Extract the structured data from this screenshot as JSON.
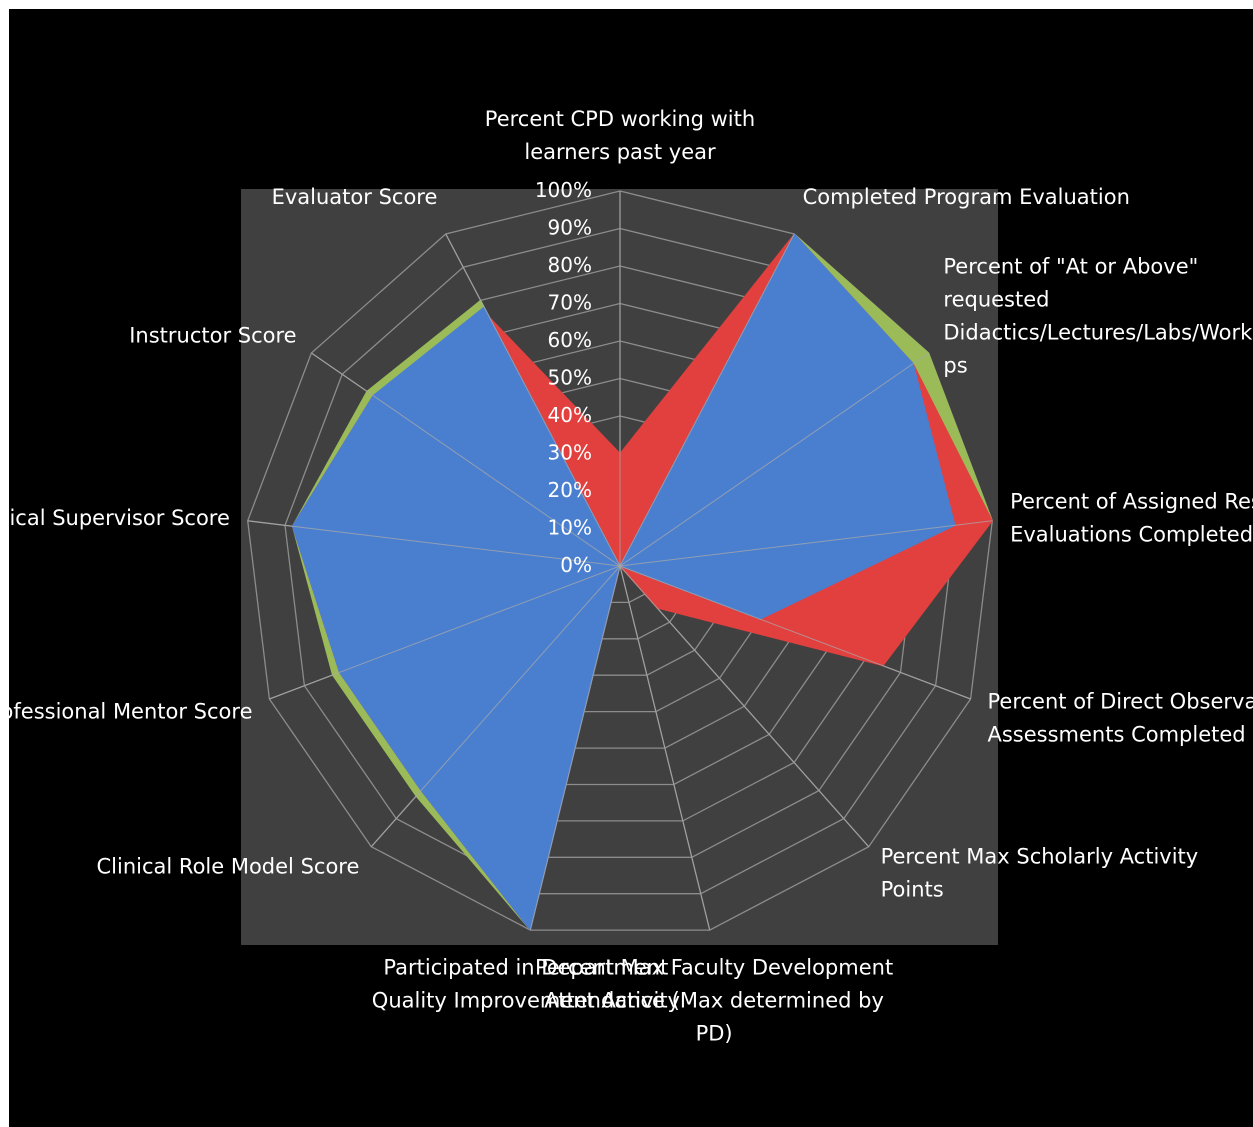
{
  "chart_data": {
    "type": "radar",
    "title": "",
    "axes": [
      [
        "Percent CPD working with",
        "learners past year"
      ],
      [
        "Completed Program Evaluation"
      ],
      [
        "Percent of \"At or Above\"",
        "requested",
        "Didactics/Lectures/Labs/Worksho",
        "ps"
      ],
      [
        "Percent of Assigned Resident",
        "Evaluations Completed"
      ],
      [
        "Percent of Direct Observation",
        "Assessments Completed"
      ],
      [
        "Percent Max Scholarly Activity",
        "Points"
      ],
      [
        "Percent Max Faculty Development",
        "Attendance (Max determined by",
        "PD)"
      ],
      [
        "Participated in Department",
        "Quality Improvement Activity"
      ],
      [
        "Clinical Role Model Score"
      ],
      [
        "Professional Mentor Score"
      ],
      [
        "Clinical Supervisor Score"
      ],
      [
        "Instructor Score"
      ],
      [
        "Evaluator Score"
      ]
    ],
    "ticks": [
      "0%",
      "10%",
      "20%",
      "30%",
      "40%",
      "50%",
      "60%",
      "70%",
      "80%",
      "90%",
      "100%"
    ],
    "rlim": [
      0,
      100
    ],
    "series": [
      {
        "color": "#9bbb59",
        "values": [
          0,
          100,
          100,
          100,
          0,
          0,
          0,
          100,
          82,
          82,
          88,
          82,
          80
        ]
      },
      {
        "color": "#e2403e",
        "values": [
          30,
          100,
          95,
          100,
          75,
          15,
          0,
          100,
          80,
          80,
          88,
          80,
          75
        ]
      },
      {
        "color": "#4a7fcf",
        "values": [
          0,
          100,
          95,
          90,
          40,
          0,
          0,
          100,
          80,
          80,
          88,
          80,
          78
        ]
      }
    ]
  }
}
